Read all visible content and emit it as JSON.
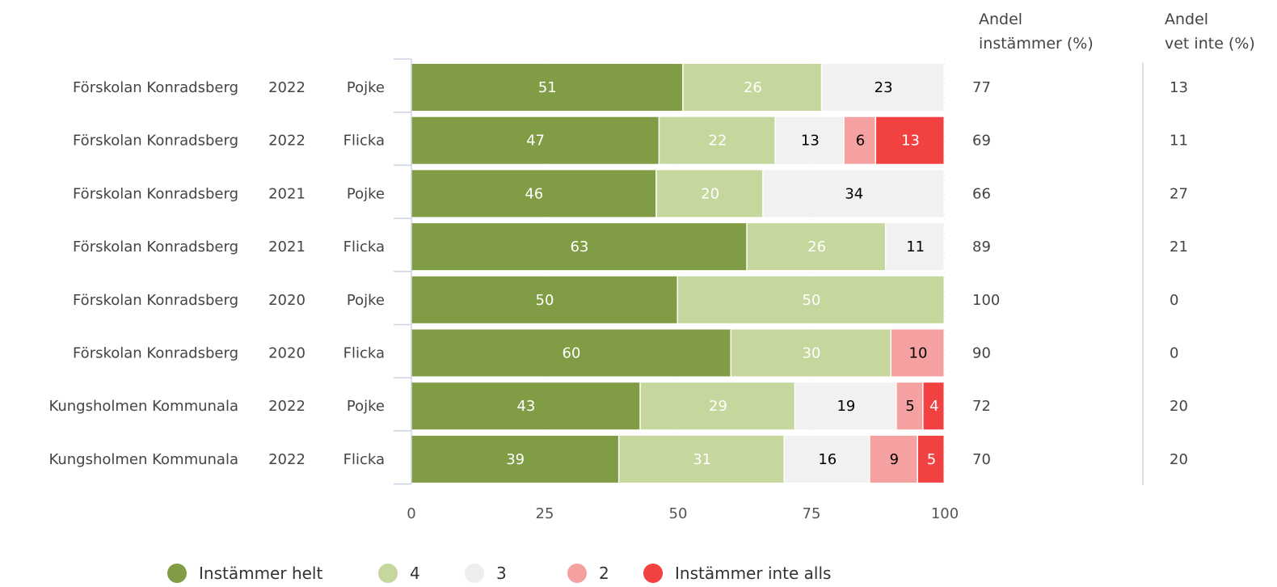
{
  "chart_data": {
    "type": "bar",
    "orientation": "horizontal",
    "stacked": true,
    "xlim": [
      0,
      100
    ],
    "x_ticks": [
      "0",
      "25",
      "50",
      "75",
      "100"
    ],
    "grid": true,
    "legend_position": "bottom",
    "colors": {
      "Instämmer helt": "#809c45",
      "4": "#c5d79c",
      "3": "#f1f1f1",
      "2": "#f6a1a1",
      "Instämmer inte alls": "#f24141"
    },
    "label_colors": {
      "Instämmer helt": "#ffffff",
      "4": "#ffffff",
      "3": "#000000",
      "2": "#000000",
      "Instämmer inte alls": "#ffffff"
    },
    "series_names": [
      "Instämmer helt",
      "4",
      "3",
      "2",
      "Instämmer inte alls"
    ],
    "rows": [
      {
        "school": "Förskolan Konradsberg",
        "year": "2022",
        "gender": "Pojke",
        "values": [
          51,
          26,
          23,
          0,
          0
        ],
        "andel_instammer": "77",
        "andel_vet_inte": "13"
      },
      {
        "school": "Förskolan Konradsberg",
        "year": "2022",
        "gender": "Flicka",
        "values": [
          47,
          22,
          13,
          6,
          13
        ],
        "andel_instammer": "69",
        "andel_vet_inte": "11"
      },
      {
        "school": "Förskolan Konradsberg",
        "year": "2021",
        "gender": "Pojke",
        "values": [
          46,
          20,
          34,
          0,
          0
        ],
        "andel_instammer": "66",
        "andel_vet_inte": "27"
      },
      {
        "school": "Förskolan Konradsberg",
        "year": "2021",
        "gender": "Flicka",
        "values": [
          63,
          26,
          11,
          0,
          0
        ],
        "andel_instammer": "89",
        "andel_vet_inte": "21"
      },
      {
        "school": "Förskolan Konradsberg",
        "year": "2020",
        "gender": "Pojke",
        "values": [
          50,
          50,
          0,
          0,
          0
        ],
        "andel_instammer": "100",
        "andel_vet_inte": "0"
      },
      {
        "school": "Förskolan Konradsberg",
        "year": "2020",
        "gender": "Flicka",
        "values": [
          60,
          30,
          0,
          10,
          0
        ],
        "andel_instammer": "90",
        "andel_vet_inte": "0"
      },
      {
        "school": "Kungsholmen Kommunala",
        "year": "2022",
        "gender": "Pojke",
        "values": [
          43,
          29,
          19,
          5,
          4
        ],
        "andel_instammer": "72",
        "andel_vet_inte": "20"
      },
      {
        "school": "Kungsholmen Kommunala",
        "year": "2022",
        "gender": "Flicka",
        "values": [
          39,
          31,
          16,
          9,
          5
        ],
        "andel_instammer": "70",
        "andel_vet_inte": "20"
      }
    ],
    "column_headers": {
      "andel_instammer": [
        "Andel",
        "instämmer (%)"
      ],
      "andel_vet_inte": [
        "Andel",
        "vet inte (%)"
      ]
    }
  }
}
